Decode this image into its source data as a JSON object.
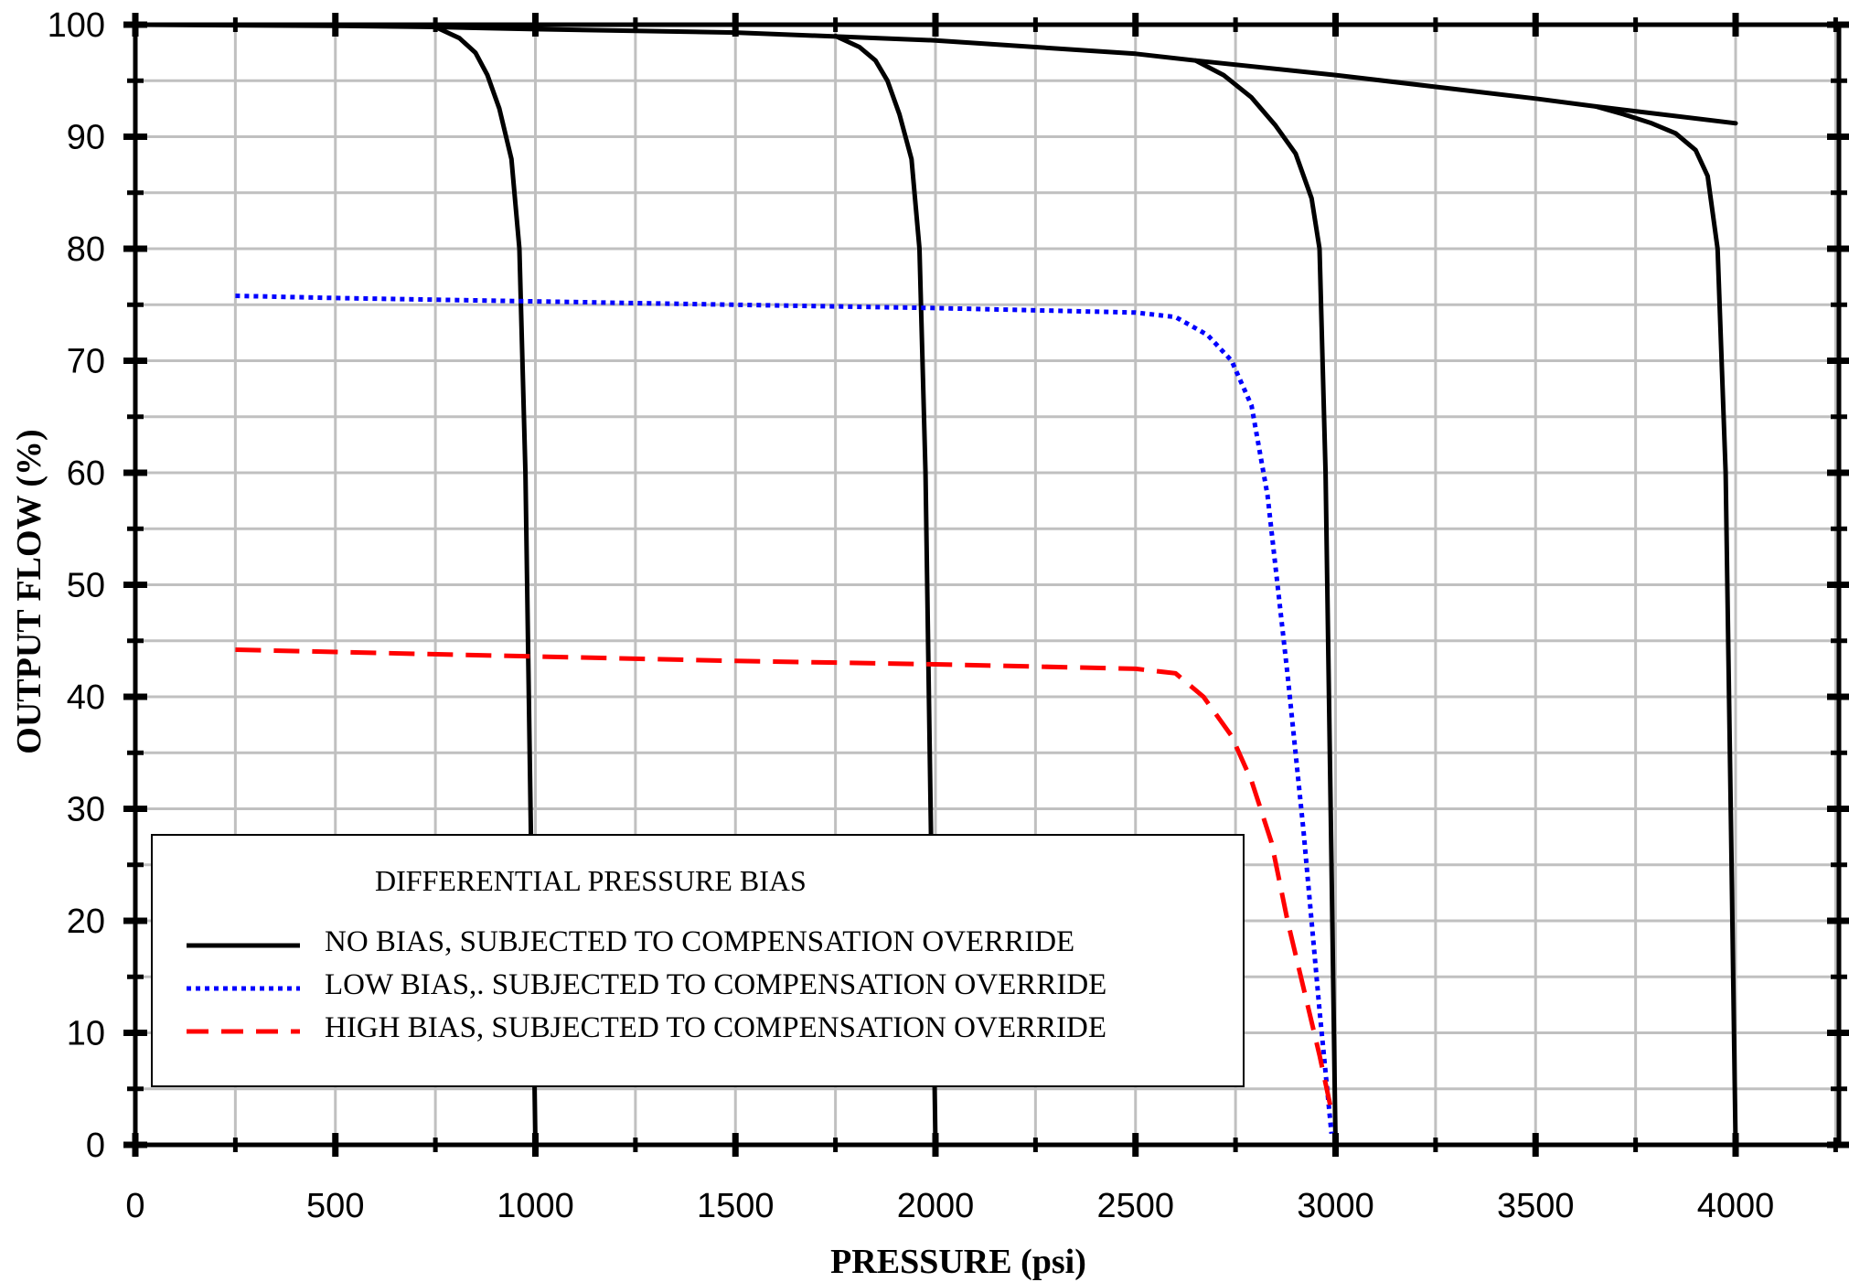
{
  "chart_data": {
    "type": "line",
    "xlabel": "PRESSURE (psi)",
    "ylabel": "OUTPUT FLOW (%)",
    "xlim": [
      0,
      4250
    ],
    "ylim": [
      0,
      100
    ],
    "x_ticks": [
      0,
      500,
      1000,
      1500,
      2000,
      2500,
      3000,
      3500,
      4000
    ],
    "y_ticks": [
      0,
      10,
      20,
      30,
      40,
      50,
      60,
      70,
      80,
      90,
      100
    ],
    "grid": true,
    "legend": {
      "title": "DIFFERENTIAL PRESSURE BIAS",
      "placement": "lower-left"
    },
    "series": [
      {
        "name": "NO BIAS, SUBJECTED TO COMPENSATION OVERRIDE",
        "color": "#000000",
        "style": "solid",
        "segments": [
          {
            "x": [
              0,
              500,
              750,
              1000,
              1500,
              2000,
              2500,
              2650,
              3000,
              3500,
              3650,
              4000
            ],
            "y": [
              100,
              99.9,
              99.8,
              99.6,
              99.3,
              98.6,
              97.4,
              96.8,
              95.5,
              93.4,
              92.7,
              91.2
            ]
          },
          {
            "x": [
              750,
              810,
              850,
              880,
              910,
              940,
              960,
              975,
              990,
              1000
            ],
            "y": [
              99.8,
              98.8,
              97.5,
              95.5,
              92.5,
              88.0,
              80.0,
              60.0,
              25.0,
              0
            ]
          },
          {
            "x": [
              1750,
              1810,
              1850,
              1880,
              1910,
              1940,
              1960,
              1975,
              1990,
              2000
            ],
            "y": [
              99.0,
              98.0,
              96.8,
              95.0,
              92.0,
              88.0,
              80.0,
              60.0,
              25.0,
              0
            ]
          },
          {
            "x": [
              2650,
              2720,
              2790,
              2850,
              2900,
              2940,
              2960,
              2975,
              2990,
              3000
            ],
            "y": [
              96.8,
              95.5,
              93.5,
              91.0,
              88.5,
              84.5,
              80.0,
              60.0,
              25.0,
              0
            ]
          },
          {
            "x": [
              3650,
              3720,
              3790,
              3850,
              3900,
              3930,
              3955,
              3975,
              3990,
              4000
            ],
            "y": [
              92.7,
              92.0,
              91.2,
              90.3,
              88.8,
              86.5,
              80.0,
              60.0,
              25.0,
              0
            ]
          }
        ]
      },
      {
        "name": "LOW BIAS,. SUBJECTED TO COMPENSATION OVERRIDE",
        "color": "#0000ff",
        "style": "dotted",
        "segments": [
          {
            "x": [
              250,
              500,
              1000,
              1500,
              2000,
              2500,
              2600,
              2680,
              2740,
              2790,
              2830,
              2880,
              2920,
              2960,
              2990
            ],
            "y": [
              75.8,
              75.6,
              75.3,
              75.0,
              74.7,
              74.3,
              73.9,
              72.3,
              70.0,
              66.0,
              58.0,
              42.0,
              28.0,
              12.0,
              1.0
            ]
          }
        ]
      },
      {
        "name": "HIGH BIAS, SUBJECTED TO COMPENSATION OVERRIDE",
        "color": "#ff0000",
        "style": "dashed",
        "segments": [
          {
            "x": [
              250,
              500,
              1000,
              1500,
              2000,
              2500,
              2600,
              2670,
              2740,
              2790,
              2840,
              2880,
              2920,
              2960,
              2990
            ],
            "y": [
              44.2,
              44.0,
              43.6,
              43.2,
              42.9,
              42.5,
              42.1,
              40.0,
              36.5,
              32.5,
              27.0,
              20.0,
              14.0,
              8.0,
              3.0
            ]
          }
        ]
      }
    ]
  }
}
